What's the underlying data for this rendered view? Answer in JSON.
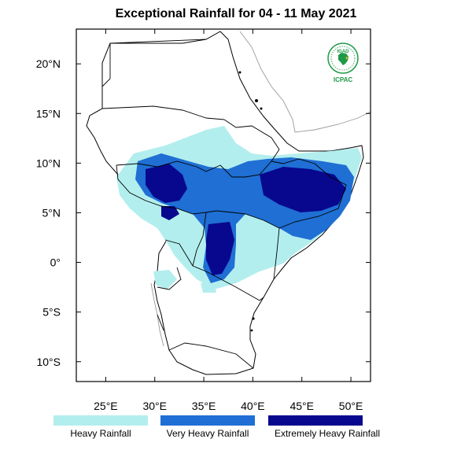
{
  "title": "Exceptional Rainfall for 04 - 11 May 2021",
  "map": {
    "lon_range": [
      22,
      52
    ],
    "lat_range": [
      -12,
      23.5
    ],
    "lon_ticks": [
      {
        "value": 25,
        "label": "25°E"
      },
      {
        "value": 30,
        "label": "30°E"
      },
      {
        "value": 35,
        "label": "35°E"
      },
      {
        "value": 40,
        "label": "40°E"
      },
      {
        "value": 45,
        "label": "45°E"
      },
      {
        "value": 50,
        "label": "50°E"
      }
    ],
    "lat_ticks": [
      {
        "value": 20,
        "label": "20°N"
      },
      {
        "value": 15,
        "label": "15°N"
      },
      {
        "value": 10,
        "label": "10°N"
      },
      {
        "value": 5,
        "label": "5°N"
      },
      {
        "value": 0,
        "label": "0°"
      },
      {
        "value": -5,
        "label": "5°S"
      },
      {
        "value": -10,
        "label": "10°S"
      }
    ]
  },
  "logo": {
    "top_text": "IGAD",
    "bottom_text": "ICPAC",
    "color": "#1e9a48"
  },
  "legend": [
    {
      "label": "Heavy Rainfall",
      "color": "#b3eeee"
    },
    {
      "label": "Very Heavy Rainfall",
      "color": "#1f6fd4"
    },
    {
      "label": "Extremely Heavy Rainfall",
      "color": "#08088e"
    }
  ]
}
